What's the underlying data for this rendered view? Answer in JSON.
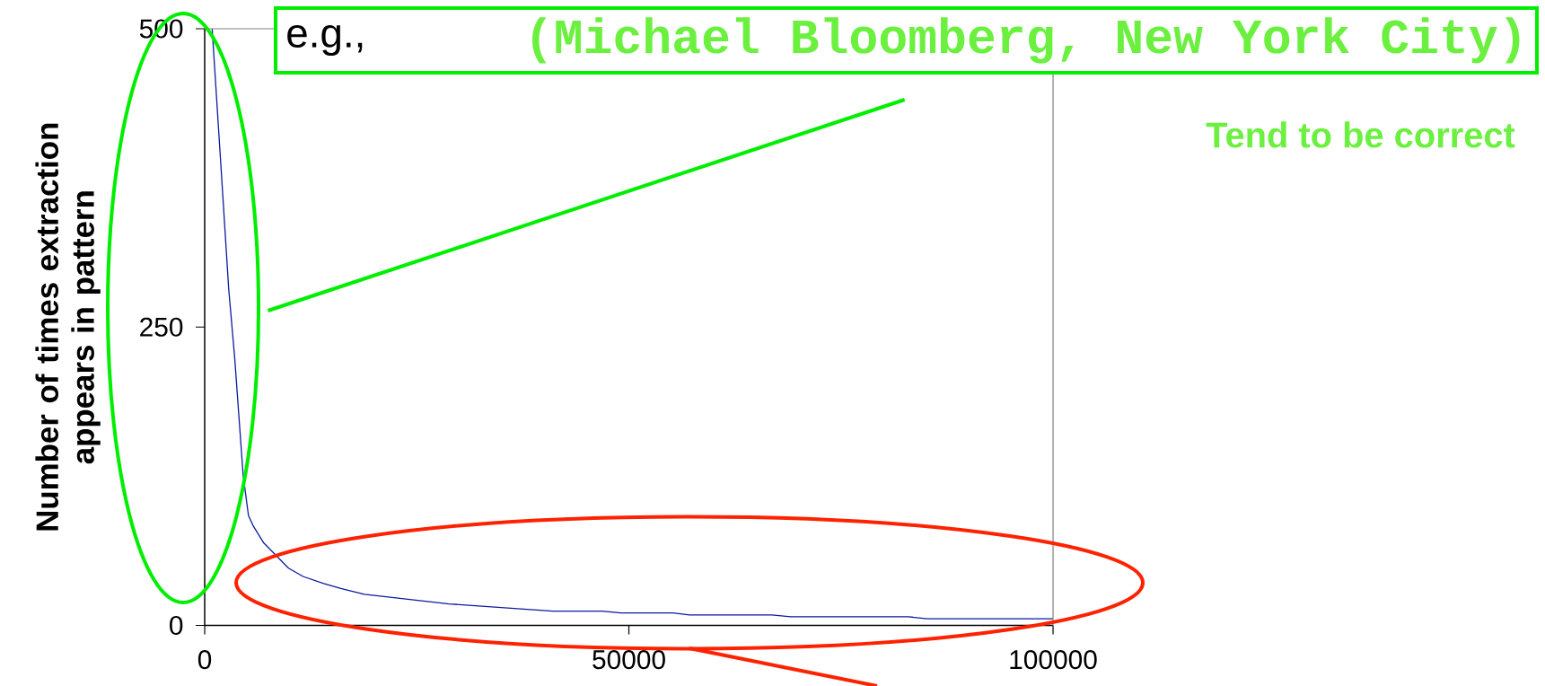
{
  "chart_data": {
    "type": "line",
    "ylabel": "Number of times extraction appears in pattern",
    "x": [
      880,
      1850,
      2830,
      3550,
      4530,
      5160,
      5750,
      6970,
      9880,
      11590,
      14030,
      16040,
      18820,
      28820,
      41040,
      46860,
      49080,
      55200,
      57130,
      66850,
      69080,
      82960,
      85180,
      100000
    ],
    "series": [
      {
        "color": "#0a1aa0",
        "values": [
          500,
          392,
          282,
          223,
          126,
          92,
          83,
          69,
          48,
          41,
          35,
          31,
          26,
          18,
          12,
          12,
          10.4,
          10.4,
          8.8,
          8.8,
          7.2,
          7.2,
          5.6,
          5.6
        ]
      }
    ],
    "xlim": [
      0,
      100000
    ],
    "ylim": [
      0,
      500
    ],
    "xticks": [
      0,
      50000,
      100000
    ],
    "yticks": [
      0,
      250,
      500
    ],
    "marker": "none",
    "line_style": "solid",
    "annotations": [
      "e.g.,",
      "(Michael Bloomberg, New York City)",
      "Tend to be correct"
    ]
  }
}
